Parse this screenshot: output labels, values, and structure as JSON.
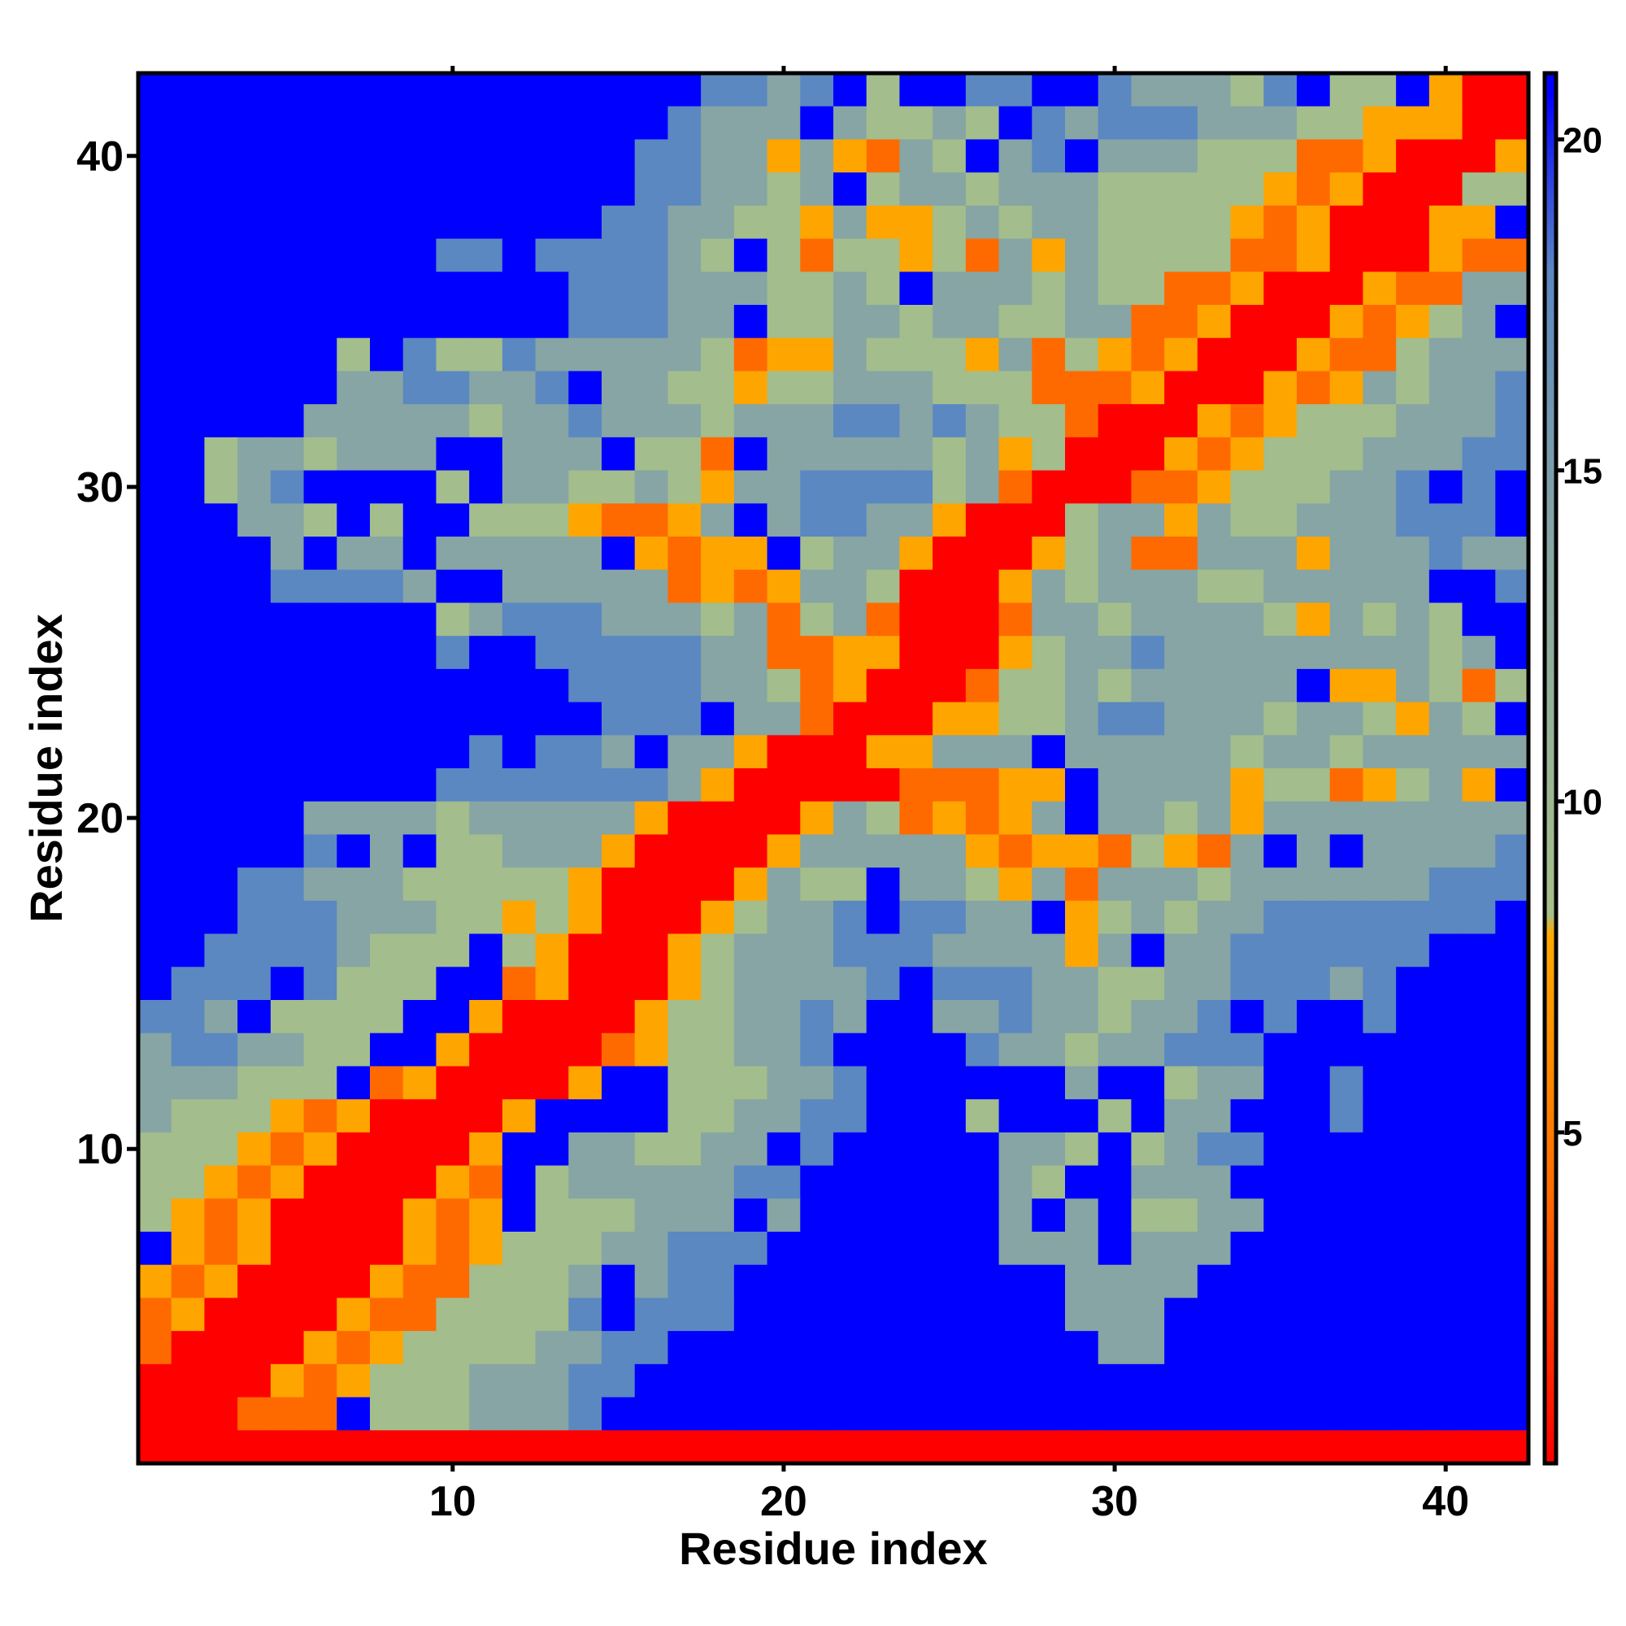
{
  "chart_data": {
    "type": "heatmap",
    "title": "",
    "xlabel": "Residue index",
    "ylabel": "Residue index",
    "n": 42,
    "xlim": [
      0.5,
      42.5
    ],
    "ylim": [
      0.5,
      42.5
    ],
    "x_ticks": [
      10,
      20,
      30,
      40
    ],
    "y_ticks": [
      10,
      20,
      30,
      40
    ],
    "x_tick_labels": [
      "10",
      "20",
      "30",
      "40"
    ],
    "y_tick_labels": [
      "10",
      "20",
      "30",
      "40"
    ],
    "colorbar": {
      "ticks": [
        5,
        10,
        15,
        20
      ],
      "tick_labels": [
        "5",
        "10",
        "15",
        "20"
      ],
      "range": [
        0,
        21
      ],
      "stops": [
        {
          "value": 0,
          "color": "#ff0000"
        },
        {
          "value": 4,
          "color": "#ff6a00"
        },
        {
          "value": 8,
          "color": "#ffaa00"
        },
        {
          "value": 8.3,
          "color": "#a6c08a"
        },
        {
          "value": 14,
          "color": "#86a5a4"
        },
        {
          "value": 18,
          "color": "#5b88c1"
        },
        {
          "value": 20.7,
          "color": "#0000ff"
        }
      ]
    },
    "cells_note": "rows listed from top (index 42) to bottom (index 1); columns index 1..42; each character is a color class: R=red(<3), O=dark orange(~4-5), Y=orange(~6-7), G=green(~9-11), T=teal-grey(~12-14), S=steel blue(~15-18), B=blue(>=20)",
    "cells": [
      "BBBBBBBBBBBBBBBBBSSTSBGBBSSBBSTTTGSBGGBYRR",
      "BBBBBBBBBBBBBBBBSTTTBTGGTGBSTSSSTTTGGYYYRR",
      "BBBBBBBBBBBBBBBSSTTYTYOTGBTSBTTTGGGOOYRRRY",
      "BBBBBBBBBBBBBBBSSTTGTBGTTGTTTGGGGGYOYRRRGG",
      "BBBBBBBBBBBBBBSSTTGGYTYYGTGTTGGGGYOYRRRYYB",
      "BBBBBBBBBSSBSSSSTGBGOGGYGOTYTGGGGOOYRRRYOO",
      "BBBBBBBBBBBBBSSSTTTGGTGBTTTGTGGOOYRRRYOOTT",
      "BBBBBBBBBBBBBSSSTTBGGTTGTTGGTTOOYRRRYOYGTB",
      "BBBBBBGBSGGSTTTTTGOYYTGGGYTOGYOYRRRYOOGTTT",
      "BBBBBBTTSSTTSBTTGGYGGTTTGGGOOOYRRRYOYTGTTS",
      "BBBBBTTTTTGTTSTTTGTTTSSTSTGGORRRYOYGGGTTTS",
      "BBGTTGTTTBBTTTBGGOBTTTTTGTYGRRRYOYGGGTTTSS",
      "BBGTSBBBBGBTTGGTGYTTSSSSGTORRROOYGGGTTSBSB",
      "BBBTTGBGBBGGGYOOYTBTSSTTYRRRGTTYTGGTTTSSSB",
      "BBBBTBTTBTTTTTBYOYYBGTTYRRRYGTOOTTTYTTTSTT",
      "BBBBSSSSTBBTTTTTOYOYTTGRRRYTGTTTGGTTTTTBBS",
      "BBBBBBBBBGTSSSTTTGTOGTORRROTTGTTTTGYTGTGBB",
      "BBBBBBBBBSBBSSSSSTTOOYYRRRYGTTSTTTTTTTTGTB",
      "BBBBBBBBBBBBBSSSSTTGOYRRROGGTGTTTTTBYYTGOG",
      "BBBBBBBBBBBBBBSSSBTTORRRYYGGTSSTTTGTTGYTGB",
      "BBBBBBBBBBSBSSTBTTYRRRYYTTTBTTTTTGTTGTTTTT",
      "BBBBBBBBBSSSSSSSTYRRRRROOOYYBTTTTYGGOYGTYB",
      "BBBBBTTTTGTTTTTYRRRRYTGOYOYTBTTGTYTTTTTTTT",
      "BBBBBSBTBGGTTTYRRRRYTTTTTYOYYOGYOTBTBTTTTS",
      "BBBSSTTTGGGGGYRRRRYTGGBTTGYTOTTTGTTTTTTSSS",
      "BBBSSSTTTGGYGYRRRYGTTSBSSTTBYGTGTTSSSSSSSB",
      "BBSSSSTGGGBGYRRRYGTTTSSSTTTTYTBTTSSSSSSBBB",
      "BSSSBSGGGBBOYRRRYGTTTTSBSSSTTGGTTSSSTSBBBB",
      "SSTBGGGGBBYRRRRYGGTTSTBBTTSTTGTTSBSBBSBBBB",
      "TSSTTGGBBYRRRROYGGTTSBBBBSTTGTTSSSBBBBBBBB",
      "TTTGGGBOYRRRRYBBGGGTTSBBBBBBTBBGTTBBSBBBBB",
      "TGGGYOYRRRRYBBBBGGTTSSBBBGBBBGBTTBBBSBBBBB",
      "GGGYOYRRRRYBBTTGGTTBSBBBBBTTGBGTSSBBBBBBBB",
      "GGYOYRRRRYOBGTTTTTSSBBBBBBTGBBTTTBBBBBBBBB",
      "GYOYRRRRYOYBGGGTTTBTBBBBBBTBTBGGTTBBBBBBBB",
      "BYOYRRRRYOYGGGTTSSSBBBBBBBTTTBTTTBBBBBBBBB",
      "YOYRRRRYOOGGGTBTSSBBBBBBBBBBTTTTBBBBBBBBBB",
      "OYRRRRYOOGGGGSBSSSBBBBBBBBBBTTTBBBBBBBBBBB",
      "ORRRRYOYGGGGTTSSBBBBBBBBBBBBBTTBBBBBBBBBBB",
      "RRRRYOYGGGTTTSSBBBBBBBBBBBBBBBBBBBBBBBBBBB",
      "RRROOOBGGGTTTSBBBBBBBBBBBBBBBBBBBBBBBBBBBB",
      "RRRRRRRRRRRRRRRRRRRRRRRRRRRRRRRRRRRRRRRRRR"
    ],
    "palette": {
      "R": "#ff0000",
      "O": "#ff6a00",
      "Y": "#ffa500",
      "G": "#a3bd8c",
      "T": "#86a5a4",
      "S": "#5b88c1",
      "B": "#0000ff"
    }
  }
}
